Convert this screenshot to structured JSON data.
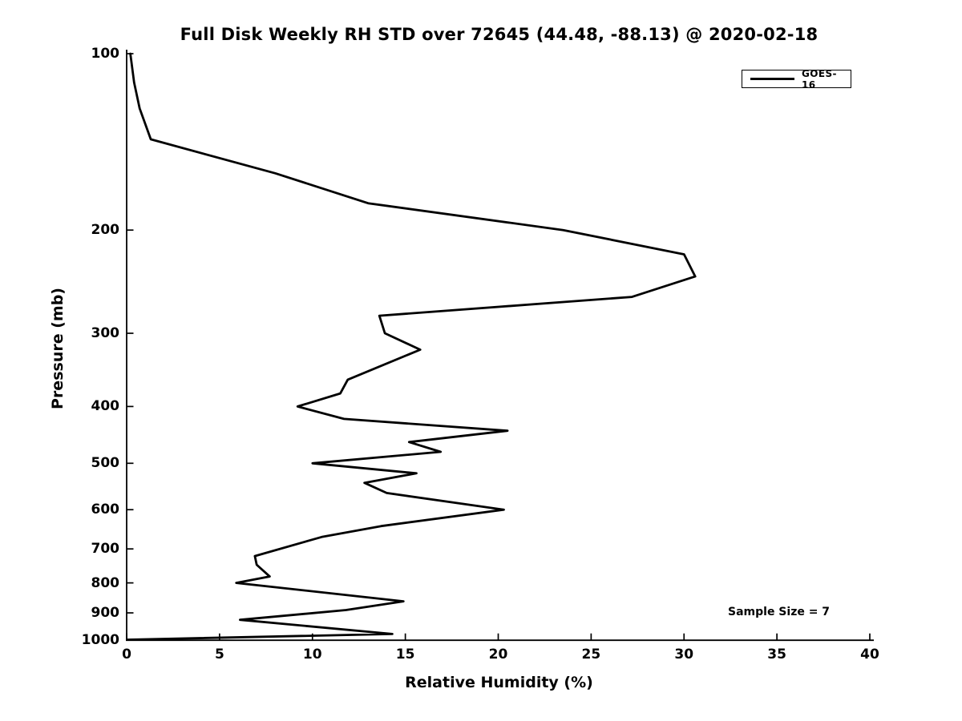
{
  "chart_data": {
    "type": "line",
    "title": "Full Disk Weekly RH STD over 72645 (44.48, -88.13) @ 2020-02-18",
    "xlabel": "Relative Humidity (%)",
    "ylabel": "Pressure (mb)",
    "xlim": [
      0,
      40
    ],
    "ylim": [
      100,
      1000
    ],
    "y_scale": "log",
    "y_inverted": true,
    "grid": false,
    "x_ticks": [
      0,
      5,
      10,
      15,
      20,
      25,
      30,
      35,
      40
    ],
    "y_ticks": [
      100,
      200,
      300,
      400,
      500,
      600,
      700,
      800,
      900,
      1000
    ],
    "legend_position": "upper right",
    "series": [
      {
        "name": "GOES-16",
        "color": "#000000",
        "line_width": 2.8,
        "point_format": [
          "pressure_mb",
          "rh_percent_std"
        ],
        "points": [
          [
            100,
            0.2
          ],
          [
            112,
            0.4
          ],
          [
            124,
            0.7
          ],
          [
            140,
            1.3
          ],
          [
            160,
            8.0
          ],
          [
            180,
            13.0
          ],
          [
            200,
            23.5
          ],
          [
            220,
            30.0
          ],
          [
            240,
            30.6
          ],
          [
            260,
            27.2
          ],
          [
            280,
            13.6
          ],
          [
            300,
            13.9
          ],
          [
            320,
            15.8
          ],
          [
            360,
            11.9
          ],
          [
            380,
            11.5
          ],
          [
            400,
            9.2
          ],
          [
            420,
            11.7
          ],
          [
            440,
            20.5
          ],
          [
            460,
            15.2
          ],
          [
            478,
            16.9
          ],
          [
            500,
            10.0
          ],
          [
            520,
            15.6
          ],
          [
            540,
            12.8
          ],
          [
            562,
            14.0
          ],
          [
            600,
            20.3
          ],
          [
            640,
            13.7
          ],
          [
            668,
            10.5
          ],
          [
            720,
            6.9
          ],
          [
            745,
            7.0
          ],
          [
            780,
            7.7
          ],
          [
            800,
            5.9
          ],
          [
            860,
            14.9
          ],
          [
            890,
            11.8
          ],
          [
            925,
            6.1
          ],
          [
            978,
            14.3
          ],
          [
            1000,
            0.05
          ]
        ]
      }
    ],
    "annotations": [
      {
        "text": "Sample Size = 7"
      }
    ]
  }
}
